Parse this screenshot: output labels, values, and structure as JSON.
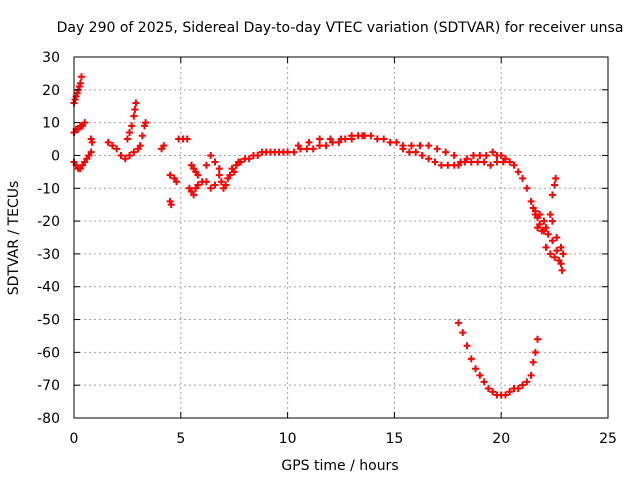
{
  "chart_data": {
    "type": "scatter",
    "title": "Day 290 of 2025, Sidereal Day-to-day VTEC variation (SDTVAR) for receiver unsa",
    "xlabel": "GPS time / hours",
    "ylabel": "SDTVAR / TECUs",
    "xlim": [
      0,
      25
    ],
    "ylim": [
      -80,
      30
    ],
    "xticks": [
      0,
      5,
      10,
      15,
      20,
      25
    ],
    "yticks": [
      -80,
      -70,
      -60,
      -50,
      -40,
      -30,
      -20,
      -10,
      0,
      10,
      20,
      30
    ],
    "grid": true,
    "marker": "+",
    "series": [
      {
        "name": "SDTVAR",
        "color": "#ff0000",
        "points": [
          [
            0.0,
            16
          ],
          [
            0.05,
            17
          ],
          [
            0.1,
            18
          ],
          [
            0.15,
            19
          ],
          [
            0.2,
            20
          ],
          [
            0.25,
            21
          ],
          [
            0.3,
            22
          ],
          [
            0.35,
            24
          ],
          [
            0.0,
            7
          ],
          [
            0.1,
            8
          ],
          [
            0.2,
            8
          ],
          [
            0.3,
            9
          ],
          [
            0.4,
            9
          ],
          [
            0.5,
            10
          ],
          [
            0.0,
            -2
          ],
          [
            0.1,
            -3
          ],
          [
            0.2,
            -4
          ],
          [
            0.3,
            -4
          ],
          [
            0.4,
            -3
          ],
          [
            0.5,
            -2
          ],
          [
            0.6,
            -1
          ],
          [
            0.7,
            0
          ],
          [
            0.8,
            1
          ],
          [
            0.8,
            5
          ],
          [
            0.85,
            4
          ],
          [
            1.6,
            4
          ],
          [
            1.8,
            3
          ],
          [
            2.0,
            2
          ],
          [
            2.2,
            0
          ],
          [
            2.4,
            -1
          ],
          [
            2.6,
            0
          ],
          [
            2.8,
            1
          ],
          [
            3.0,
            2
          ],
          [
            3.1,
            3
          ],
          [
            3.2,
            6
          ],
          [
            3.3,
            9
          ],
          [
            3.35,
            10
          ],
          [
            2.5,
            5
          ],
          [
            2.6,
            7
          ],
          [
            2.7,
            9
          ],
          [
            2.8,
            12
          ],
          [
            2.85,
            14
          ],
          [
            2.9,
            16
          ],
          [
            4.1,
            2
          ],
          [
            4.2,
            3
          ],
          [
            4.5,
            -6
          ],
          [
            4.7,
            -7
          ],
          [
            4.8,
            -8
          ],
          [
            4.5,
            -14
          ],
          [
            4.55,
            -15
          ],
          [
            4.9,
            5
          ],
          [
            5.1,
            5
          ],
          [
            5.3,
            5
          ],
          [
            5.4,
            -10
          ],
          [
            5.5,
            -11
          ],
          [
            5.6,
            -12
          ],
          [
            5.7,
            -10
          ],
          [
            5.8,
            -9
          ],
          [
            5.5,
            -3
          ],
          [
            5.6,
            -4
          ],
          [
            5.7,
            -5
          ],
          [
            5.8,
            -6
          ],
          [
            6.0,
            -8
          ],
          [
            6.2,
            -8
          ],
          [
            6.4,
            -10
          ],
          [
            6.6,
            -9
          ],
          [
            6.2,
            -3
          ],
          [
            6.4,
            0
          ],
          [
            6.6,
            -2
          ],
          [
            6.8,
            -4
          ],
          [
            6.8,
            -6
          ],
          [
            6.9,
            -8
          ],
          [
            7.0,
            -10
          ],
          [
            7.1,
            -9
          ],
          [
            7.2,
            -7
          ],
          [
            7.3,
            -6
          ],
          [
            7.4,
            -4
          ],
          [
            7.5,
            -5
          ],
          [
            7.6,
            -3
          ],
          [
            7.7,
            -2
          ],
          [
            7.8,
            -2
          ],
          [
            8.0,
            -1
          ],
          [
            8.2,
            -1
          ],
          [
            8.4,
            0
          ],
          [
            8.6,
            0
          ],
          [
            8.8,
            1
          ],
          [
            9.0,
            1
          ],
          [
            9.2,
            1
          ],
          [
            9.4,
            1
          ],
          [
            9.6,
            1
          ],
          [
            9.8,
            1
          ],
          [
            10.0,
            1
          ],
          [
            10.3,
            1
          ],
          [
            10.6,
            2
          ],
          [
            10.9,
            2
          ],
          [
            11.2,
            2
          ],
          [
            11.5,
            3
          ],
          [
            11.8,
            3
          ],
          [
            12.1,
            4
          ],
          [
            12.4,
            4
          ],
          [
            12.7,
            5
          ],
          [
            13.0,
            5
          ],
          [
            13.3,
            6
          ],
          [
            13.6,
            6
          ],
          [
            13.9,
            6
          ],
          [
            14.2,
            5
          ],
          [
            14.5,
            5
          ],
          [
            14.8,
            4
          ],
          [
            15.1,
            4
          ],
          [
            15.4,
            3
          ],
          [
            10.5,
            3
          ],
          [
            11.0,
            4
          ],
          [
            11.5,
            5
          ],
          [
            12.0,
            5
          ],
          [
            12.5,
            5
          ],
          [
            13.0,
            6
          ],
          [
            13.5,
            6
          ],
          [
            15.4,
            2
          ],
          [
            15.7,
            1
          ],
          [
            16.0,
            1
          ],
          [
            16.3,
            0
          ],
          [
            16.6,
            -1
          ],
          [
            16.9,
            -2
          ],
          [
            17.2,
            -3
          ],
          [
            17.5,
            -3
          ],
          [
            17.8,
            -3
          ],
          [
            18.1,
            -2
          ],
          [
            15.8,
            3
          ],
          [
            16.2,
            3
          ],
          [
            16.6,
            3
          ],
          [
            17.0,
            2
          ],
          [
            17.4,
            1
          ],
          [
            17.8,
            0
          ],
          [
            18.4,
            -1
          ],
          [
            18.7,
            0
          ],
          [
            19.0,
            0
          ],
          [
            19.3,
            0
          ],
          [
            19.6,
            1
          ],
          [
            19.8,
            0
          ],
          [
            20.0,
            0
          ],
          [
            20.2,
            -1
          ],
          [
            18.0,
            -3
          ],
          [
            18.3,
            -2
          ],
          [
            18.6,
            -2
          ],
          [
            18.9,
            -2
          ],
          [
            19.2,
            -2
          ],
          [
            19.5,
            -3
          ],
          [
            19.8,
            -2
          ],
          [
            20.1,
            -2
          ],
          [
            20.4,
            -2
          ],
          [
            20.6,
            -3
          ],
          [
            20.8,
            -5
          ],
          [
            21.0,
            -7
          ],
          [
            21.2,
            -10
          ],
          [
            21.4,
            -14
          ],
          [
            21.6,
            -18
          ],
          [
            21.8,
            -21
          ],
          [
            22.0,
            -23
          ],
          [
            22.2,
            -24
          ],
          [
            22.4,
            -26
          ],
          [
            22.6,
            -29
          ],
          [
            22.8,
            -33
          ],
          [
            21.5,
            -16
          ],
          [
            21.6,
            -17
          ],
          [
            21.7,
            -19
          ],
          [
            21.8,
            -18
          ],
          [
            22.0,
            -20
          ],
          [
            21.7,
            -22
          ],
          [
            21.9,
            -23
          ],
          [
            22.1,
            -22
          ],
          [
            22.3,
            -18
          ],
          [
            22.4,
            -12
          ],
          [
            22.5,
            -9
          ],
          [
            22.55,
            -7
          ],
          [
            22.1,
            -28
          ],
          [
            22.3,
            -30
          ],
          [
            22.5,
            -31
          ],
          [
            22.7,
            -32
          ],
          [
            22.85,
            -35
          ],
          [
            22.4,
            -20
          ],
          [
            22.6,
            -25
          ],
          [
            22.8,
            -28
          ],
          [
            22.9,
            -30
          ],
          [
            18.0,
            -51
          ],
          [
            18.2,
            -54
          ],
          [
            18.4,
            -58
          ],
          [
            18.6,
            -62
          ],
          [
            18.8,
            -65
          ],
          [
            19.0,
            -67
          ],
          [
            19.2,
            -69
          ],
          [
            19.4,
            -71
          ],
          [
            19.6,
            -72
          ],
          [
            19.8,
            -73
          ],
          [
            20.0,
            -73
          ],
          [
            20.2,
            -73
          ],
          [
            20.4,
            -72
          ],
          [
            20.6,
            -71
          ],
          [
            20.8,
            -71
          ],
          [
            21.0,
            -70
          ],
          [
            21.2,
            -69
          ],
          [
            21.4,
            -67
          ],
          [
            21.5,
            -63
          ],
          [
            21.6,
            -60
          ],
          [
            21.7,
            -56
          ]
        ]
      }
    ]
  }
}
